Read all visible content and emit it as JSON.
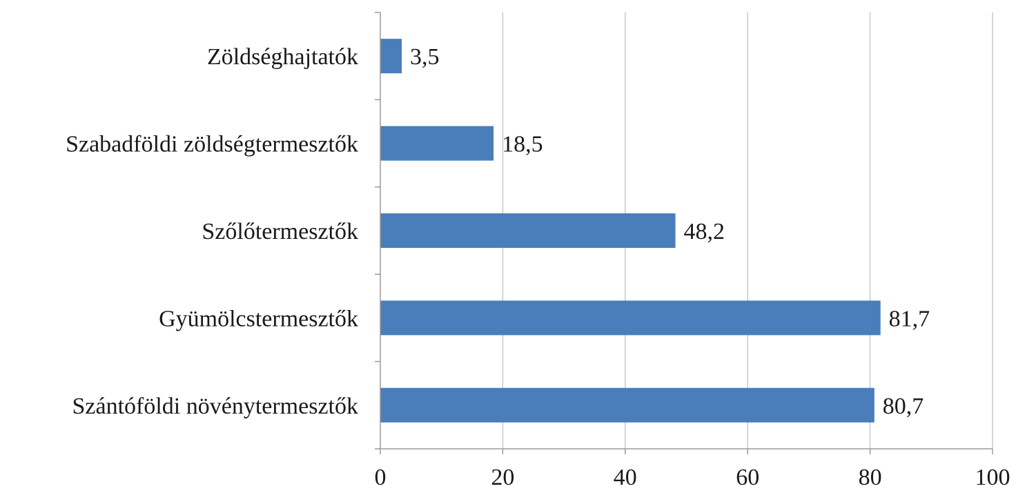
{
  "chart_data": {
    "type": "bar",
    "orientation": "horizontal",
    "categories": [
      "Zöldséghajtatók",
      "Szabadföldi zöldségtermesztők",
      "Szőlőtermesztők",
      "Gyümölcstermesztők",
      "Szántóföldi növénytermesztők"
    ],
    "values": [
      3.5,
      18.5,
      48.2,
      81.7,
      80.7
    ],
    "value_labels": [
      "3,5",
      "18,5",
      "48,2",
      "81,7",
      "80,7"
    ],
    "xlim": [
      0,
      100
    ],
    "xticks": [
      0,
      20,
      40,
      60,
      80,
      100
    ],
    "xtick_labels": [
      "0",
      "20",
      "40",
      "60",
      "80",
      "100"
    ],
    "grid": "vertical",
    "legend": "none",
    "bar_color": "#4a7ebb"
  }
}
